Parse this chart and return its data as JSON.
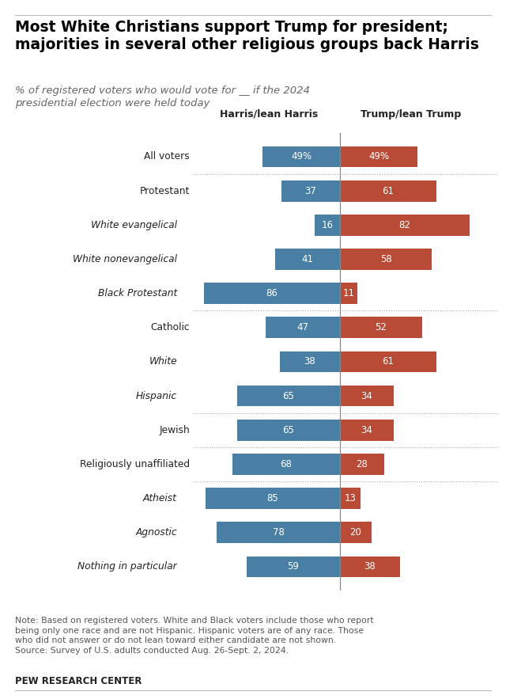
{
  "title": "Most White Christians support Trump for president;\nmajorities in several other religious groups back Harris",
  "subtitle": "% of registered voters who would vote for __ if the 2024\npresidential election were held today",
  "harris_label": "Harris/lean Harris",
  "trump_label": "Trump/lean Trump",
  "categories": [
    "All voters",
    "Protestant",
    "White evangelical",
    "White nonevangelical",
    "Black Protestant",
    "Catholic",
    "White",
    "Hispanic",
    "Jewish",
    "Religiously unaffiliated",
    "Atheist",
    "Agnostic",
    "Nothing in particular"
  ],
  "indent": [
    false,
    false,
    true,
    true,
    true,
    false,
    true,
    true,
    false,
    false,
    true,
    true,
    true
  ],
  "harris_values": [
    49,
    37,
    16,
    41,
    86,
    47,
    38,
    65,
    65,
    68,
    85,
    78,
    59
  ],
  "trump_values": [
    49,
    61,
    82,
    58,
    11,
    52,
    61,
    34,
    34,
    28,
    13,
    20,
    38
  ],
  "harris_show_pct": [
    true,
    false,
    false,
    false,
    false,
    false,
    false,
    false,
    false,
    false,
    false,
    false,
    false
  ],
  "trump_show_pct": [
    true,
    false,
    false,
    false,
    false,
    false,
    false,
    false,
    false,
    false,
    false,
    false,
    false
  ],
  "harris_color": "#4a7fa5",
  "trump_color": "#b94a36",
  "background_color": "#ffffff",
  "divider_after_indices": [
    0,
    4,
    7,
    8,
    9
  ],
  "note": "Note: Based on registered voters. White and Black voters include those who report\nbeing only one race and are not Hispanic. Hispanic voters are of any race. Those\nwho did not answer or do not lean toward either candidate are not shown.\nSource: Survey of U.S. adults conducted Aug. 26-Sept. 2, 2024.",
  "source_label": "PEW RESEARCH CENTER",
  "figsize": [
    6.4,
    8.83
  ],
  "bar_height": 0.62,
  "scale": 90
}
